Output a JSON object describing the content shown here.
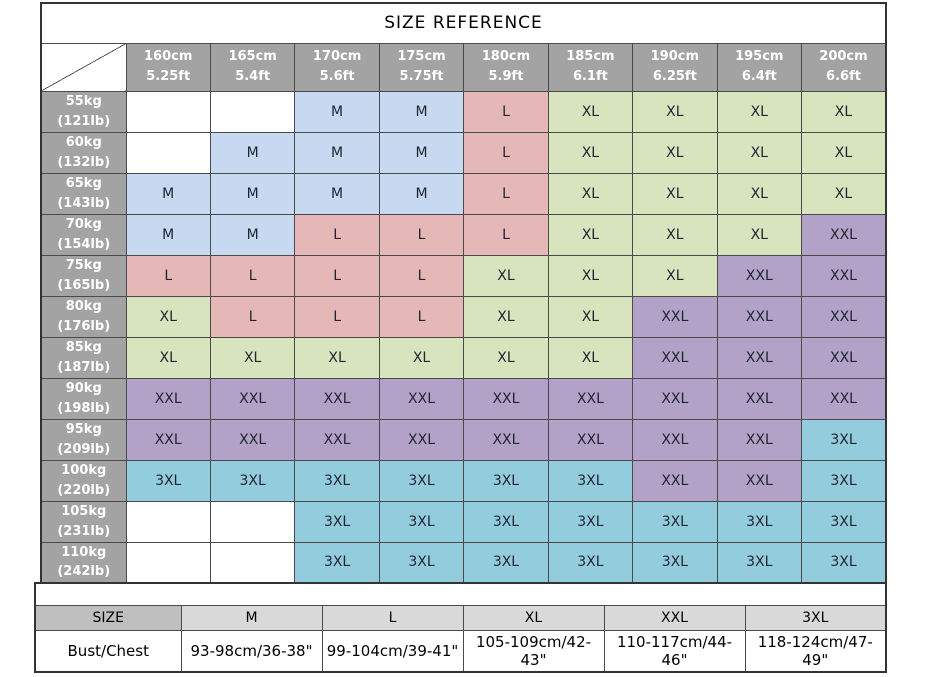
{
  "title": "SIZE REFERENCE",
  "colors": {
    "M": "#c6d9f1",
    "L": "#e5b8b7",
    "XL": "#d7e4bd",
    "XXL": "#b2a2c7",
    "3XL": "#93cddd",
    "empty": "#ffffff",
    "header_bg": "#a3a3a3",
    "header_text": "#ffffff",
    "measure_header_bg": "#d9d9d9",
    "measure_size_label_bg": "#bfbfbf"
  },
  "height_columns": [
    {
      "cm": "160cm",
      "ft": "5.25ft"
    },
    {
      "cm": "165cm",
      "ft": "5.4ft"
    },
    {
      "cm": "170cm",
      "ft": "5.6ft"
    },
    {
      "cm": "175cm",
      "ft": "5.75ft"
    },
    {
      "cm": "180cm",
      "ft": "5.9ft"
    },
    {
      "cm": "185cm",
      "ft": "6.1ft"
    },
    {
      "cm": "190cm",
      "ft": "6.25ft"
    },
    {
      "cm": "195cm",
      "ft": "6.4ft"
    },
    {
      "cm": "200cm",
      "ft": "6.6ft"
    }
  ],
  "weight_rows": [
    {
      "kg": "55kg",
      "lb": "(121lb)",
      "sizes": [
        "",
        "",
        "M",
        "M",
        "L",
        "XL",
        "XL",
        "XL",
        "XL"
      ]
    },
    {
      "kg": "60kg",
      "lb": "(132lb)",
      "sizes": [
        "",
        "M",
        "M",
        "M",
        "L",
        "XL",
        "XL",
        "XL",
        "XL"
      ]
    },
    {
      "kg": "65kg",
      "lb": "(143lb)",
      "sizes": [
        "M",
        "M",
        "M",
        "M",
        "L",
        "XL",
        "XL",
        "XL",
        "XL"
      ]
    },
    {
      "kg": "70kg",
      "lb": "(154lb)",
      "sizes": [
        "M",
        "M",
        "L",
        "L",
        "L",
        "XL",
        "XL",
        "XL",
        "XXL"
      ]
    },
    {
      "kg": "75kg",
      "lb": "(165lb)",
      "sizes": [
        "L",
        "L",
        "L",
        "L",
        "XL",
        "XL",
        "XL",
        "XXL",
        "XXL"
      ]
    },
    {
      "kg": "80kg",
      "lb": "(176lb)",
      "sizes": [
        "XL",
        "L",
        "L",
        "L",
        "XL",
        "XL",
        "XXL",
        "XXL",
        "XXL"
      ]
    },
    {
      "kg": "85kg",
      "lb": "(187lb)",
      "sizes": [
        "XL",
        "XL",
        "XL",
        "XL",
        "XL",
        "XL",
        "XXL",
        "XXL",
        "XXL"
      ]
    },
    {
      "kg": "90kg",
      "lb": "(198lb)",
      "sizes": [
        "XXL",
        "XXL",
        "XXL",
        "XXL",
        "XXL",
        "XXL",
        "XXL",
        "XXL",
        "XXL"
      ]
    },
    {
      "kg": "95kg",
      "lb": "(209lb)",
      "sizes": [
        "XXL",
        "XXL",
        "XXL",
        "XXL",
        "XXL",
        "XXL",
        "XXL",
        "XXL",
        "3XL"
      ]
    },
    {
      "kg": "100kg",
      "lb": "(220lb)",
      "sizes": [
        "3XL",
        "3XL",
        "3XL",
        "3XL",
        "3XL",
        "3XL",
        "XXL",
        "XXL",
        "3XL"
      ]
    },
    {
      "kg": "105kg",
      "lb": "(231lb)",
      "sizes": [
        "",
        "",
        "3XL",
        "3XL",
        "3XL",
        "3XL",
        "3XL",
        "3XL",
        "3XL"
      ]
    },
    {
      "kg": "110kg",
      "lb": "(242lb)",
      "sizes": [
        "",
        "",
        "3XL",
        "3XL",
        "3XL",
        "3XL",
        "3XL",
        "3XL",
        "3XL"
      ]
    }
  ],
  "measurement_table": {
    "corner_label": "SIZE",
    "size_headers": [
      "M",
      "L",
      "XL",
      "XXL",
      "3XL"
    ],
    "rows": [
      {
        "label": "Bust/Chest",
        "values": [
          "93-98cm/36-38\"",
          "99-104cm/39-41\"",
          "105-109cm/42-43\"",
          "110-117cm/44-46\"",
          "118-124cm/47-49\""
        ]
      }
    ]
  }
}
